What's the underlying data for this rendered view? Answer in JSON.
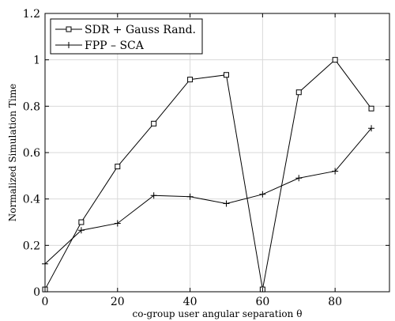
{
  "chart_data": {
    "type": "line",
    "title": "",
    "xlabel": "co-group user angular separation θ",
    "ylabel": "Normalized Simulation Time",
    "xlim": [
      0,
      95
    ],
    "ylim": [
      0,
      1.2
    ],
    "xticks": [
      0,
      20,
      40,
      60,
      80
    ],
    "yticks": [
      0,
      0.2,
      0.4,
      0.6,
      0.8,
      1,
      1.2
    ],
    "xtick_labels": [
      "0",
      "20",
      "40",
      "60",
      "80"
    ],
    "ytick_labels": [
      "0",
      "0.2",
      "0.4",
      "0.6",
      "0.8",
      "1",
      "1.2"
    ],
    "grid": true,
    "legend_position": "top-left",
    "x": [
      0,
      10,
      20,
      30,
      40,
      50,
      60,
      70,
      80,
      90
    ],
    "series": [
      {
        "name": "SDR + Gauss Rand.",
        "marker": "square",
        "color": "#000000",
        "values": [
          0.01,
          0.3,
          0.54,
          0.725,
          0.915,
          0.935,
          0.01,
          0.86,
          1.0,
          0.79
        ]
      },
      {
        "name": "FPP – SCA",
        "marker": "plus",
        "color": "#000000",
        "values": [
          0.12,
          0.265,
          0.295,
          0.415,
          0.41,
          0.38,
          0.42,
          0.49,
          0.52,
          0.705
        ]
      }
    ]
  }
}
